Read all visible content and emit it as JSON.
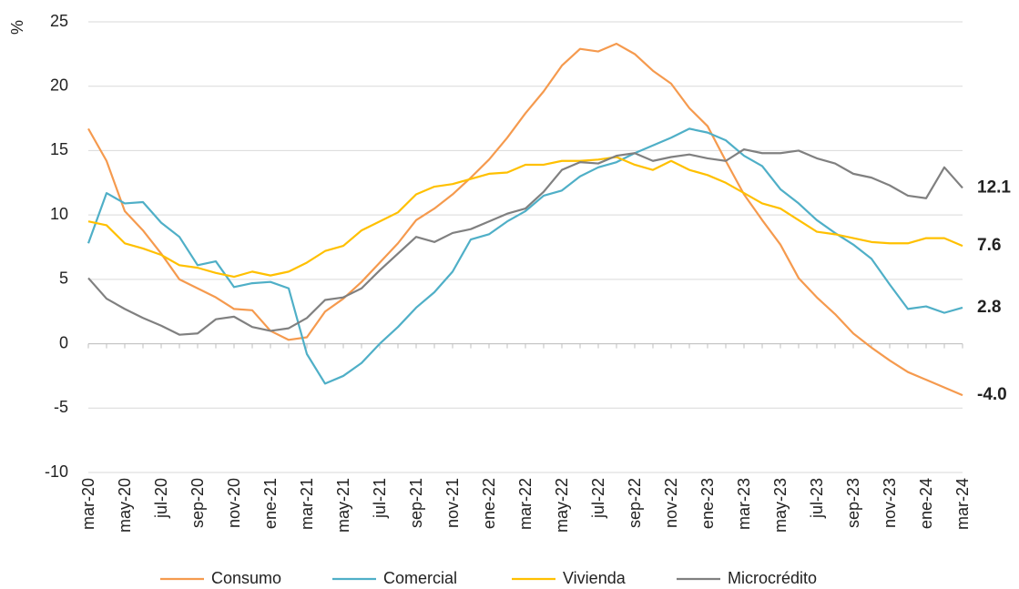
{
  "chart_data": {
    "type": "line",
    "y_label": "%",
    "categories": [
      "mar-20",
      null,
      "may-20",
      null,
      "jul-20",
      null,
      "sep-20",
      null,
      "nov-20",
      null,
      "ene-21",
      null,
      "mar-21",
      null,
      "may-21",
      null,
      "jul-21",
      null,
      "sep-21",
      null,
      "nov-21",
      null,
      "ene-22",
      null,
      "mar-22",
      null,
      "may-22",
      null,
      "jul-22",
      null,
      "sep-22",
      null,
      "nov-22",
      null,
      "ene-23",
      null,
      "mar-23",
      null,
      "may-23",
      null,
      "jul-23",
      null,
      "sep-23",
      null,
      "nov-23",
      null,
      "ene-24",
      null,
      "mar-24"
    ],
    "series": [
      {
        "name": "Consumo",
        "color": "#F59A4E",
        "values": [
          16.7,
          14.2,
          10.3,
          8.8,
          7.0,
          5.0,
          4.3,
          3.6,
          2.7,
          2.6,
          1.0,
          0.3,
          0.5,
          2.5,
          3.5,
          4.8,
          6.3,
          7.8,
          9.6,
          10.5,
          11.6,
          12.9,
          14.3,
          16.0,
          17.9,
          19.6,
          21.6,
          22.9,
          22.7,
          23.3,
          22.5,
          21.2,
          20.2,
          18.3,
          16.9,
          14.2,
          11.6,
          9.6,
          7.7,
          5.1,
          3.6,
          2.3,
          0.8,
          -0.3,
          -1.3,
          -2.2,
          -2.8,
          -3.4,
          -4.0
        ],
        "value_labels": [
          null,
          null,
          null,
          null,
          null,
          null,
          null,
          null,
          null,
          null,
          null,
          null,
          null,
          null,
          null,
          null,
          null,
          null,
          null,
          null,
          null,
          null,
          null,
          null,
          null,
          null,
          null,
          null,
          null,
          null,
          null,
          null,
          null,
          null,
          null,
          null,
          null,
          null,
          null,
          null,
          null,
          null,
          null,
          null,
          null,
          null,
          null,
          null,
          "-4.0"
        ]
      },
      {
        "name": "Comercial",
        "color": "#4FAFC7",
        "values": [
          7.8,
          11.7,
          10.9,
          11.0,
          9.4,
          8.3,
          6.1,
          6.4,
          4.4,
          4.7,
          4.8,
          4.3,
          -0.8,
          -3.1,
          -2.5,
          -1.5,
          0.0,
          1.3,
          2.8,
          4.0,
          5.6,
          8.1,
          8.5,
          9.5,
          10.3,
          11.5,
          11.9,
          13.0,
          13.7,
          14.1,
          14.8,
          15.4,
          16.0,
          16.7,
          16.4,
          15.8,
          14.6,
          13.8,
          12.0,
          10.9,
          9.6,
          8.6,
          7.7,
          6.6,
          4.6,
          2.7,
          2.9,
          2.4,
          2.8
        ]
      },
      {
        "name": "Vivienda",
        "color": "#FFC000",
        "values": [
          9.5,
          9.2,
          7.8,
          7.4,
          6.9,
          6.1,
          5.9,
          5.5,
          5.2,
          5.6,
          5.3,
          5.6,
          6.3,
          7.2,
          7.6,
          8.8,
          9.5,
          10.2,
          11.6,
          12.2,
          12.4,
          12.8,
          13.2,
          13.3,
          13.9,
          13.9,
          14.2,
          14.2,
          14.3,
          14.5,
          13.9,
          13.5,
          14.2,
          13.5,
          13.1,
          12.5,
          11.7,
          10.9,
          10.5,
          9.6,
          8.7,
          8.5,
          8.2,
          7.9,
          7.8,
          7.8,
          8.2,
          8.2,
          7.6
        ]
      },
      {
        "name": "Microcrédito",
        "color": "#808080",
        "values": [
          5.1,
          3.5,
          2.7,
          2.0,
          1.4,
          0.7,
          0.8,
          1.9,
          2.1,
          1.3,
          1.0,
          1.2,
          2.0,
          3.4,
          3.6,
          4.3,
          5.7,
          7.0,
          8.3,
          7.9,
          8.6,
          8.9,
          9.5,
          10.1,
          10.5,
          11.8,
          13.5,
          14.1,
          14.0,
          14.6,
          14.8,
          14.2,
          14.5,
          14.7,
          14.4,
          14.2,
          15.1,
          14.8,
          14.8,
          15.0,
          14.4,
          14.0,
          13.2,
          12.9,
          12.3,
          11.5,
          11.3,
          13.7,
          12.1
        ]
      }
    ],
    "ylim": [
      -10,
      25
    ],
    "yticks": [
      -10,
      -5,
      0,
      5,
      10,
      15,
      20,
      25
    ],
    "grid": true,
    "legend": "bottom"
  }
}
